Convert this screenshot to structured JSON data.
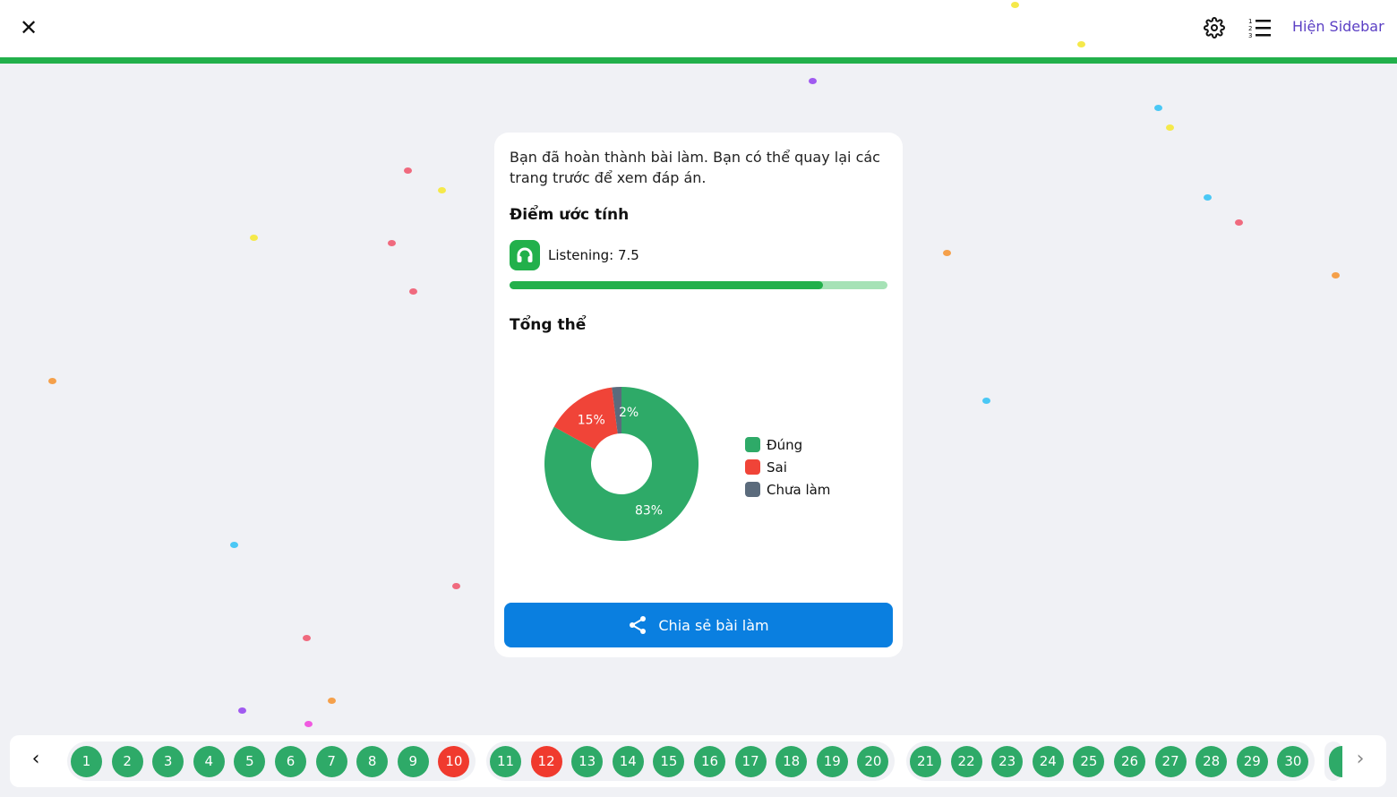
{
  "header": {
    "close_icon": "close-icon",
    "settings_icon": "gear-icon",
    "list_icon": "numbered-list-icon",
    "sidebar_label": "Hiện Sidebar",
    "progress_color": "#22b04b"
  },
  "result": {
    "message": "Bạn đã hoàn thành bài làm. Bạn có thể quay lại các trang trước để xem đáp án.",
    "score_title": "Điểm ước tính",
    "skill": {
      "icon": "headphones-icon",
      "label": "Listening: 7.5",
      "progress": 0.83
    },
    "overall_title": "Tổng thể",
    "share_label": "Chia sẻ bài làm"
  },
  "chart_data": {
    "type": "pie",
    "donut": true,
    "categories": [
      "Đúng",
      "Sai",
      "Chưa làm"
    ],
    "values": [
      83,
      15,
      2
    ],
    "labels": [
      "83%",
      "15%",
      "2%"
    ],
    "colors": [
      "#2eaa68",
      "#f04438",
      "#5b6b7c"
    ],
    "legend": "right"
  },
  "questions": [
    {
      "n": "1",
      "s": "correct"
    },
    {
      "n": "2",
      "s": "correct"
    },
    {
      "n": "3",
      "s": "correct"
    },
    {
      "n": "4",
      "s": "correct"
    },
    {
      "n": "5",
      "s": "correct"
    },
    {
      "n": "6",
      "s": "correct"
    },
    {
      "n": "7",
      "s": "correct"
    },
    {
      "n": "8",
      "s": "correct"
    },
    {
      "n": "9",
      "s": "correct"
    },
    {
      "n": "10",
      "s": "wrong"
    },
    {
      "n": "11",
      "s": "correct"
    },
    {
      "n": "12",
      "s": "wrong"
    },
    {
      "n": "13",
      "s": "correct"
    },
    {
      "n": "14",
      "s": "correct"
    },
    {
      "n": "15",
      "s": "correct"
    },
    {
      "n": "16",
      "s": "correct"
    },
    {
      "n": "17",
      "s": "correct"
    },
    {
      "n": "18",
      "s": "correct"
    },
    {
      "n": "19",
      "s": "correct"
    },
    {
      "n": "20",
      "s": "correct"
    },
    {
      "n": "21",
      "s": "correct"
    },
    {
      "n": "22",
      "s": "correct"
    },
    {
      "n": "23",
      "s": "correct"
    },
    {
      "n": "24",
      "s": "correct"
    },
    {
      "n": "25",
      "s": "correct"
    },
    {
      "n": "26",
      "s": "correct"
    },
    {
      "n": "27",
      "s": "correct"
    },
    {
      "n": "28",
      "s": "correct"
    },
    {
      "n": "29",
      "s": "correct"
    },
    {
      "n": "30",
      "s": "correct"
    }
  ],
  "status_colors": {
    "correct": "#2eaa68",
    "wrong": "#f03a2e"
  },
  "nav": {
    "prev_icon": "chevron-left-icon",
    "next_icon": "chevron-right-icon"
  }
}
